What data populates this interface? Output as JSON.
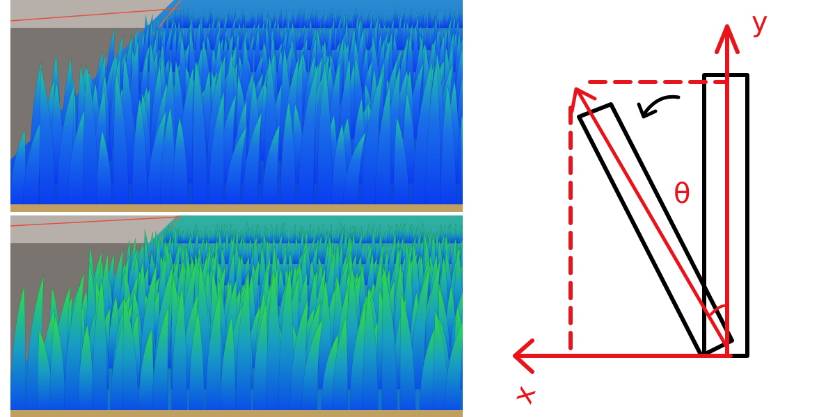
{
  "diagram": {
    "y_axis_label": "y",
    "x_axis_label": "x",
    "angle_label": "θ"
  }
}
